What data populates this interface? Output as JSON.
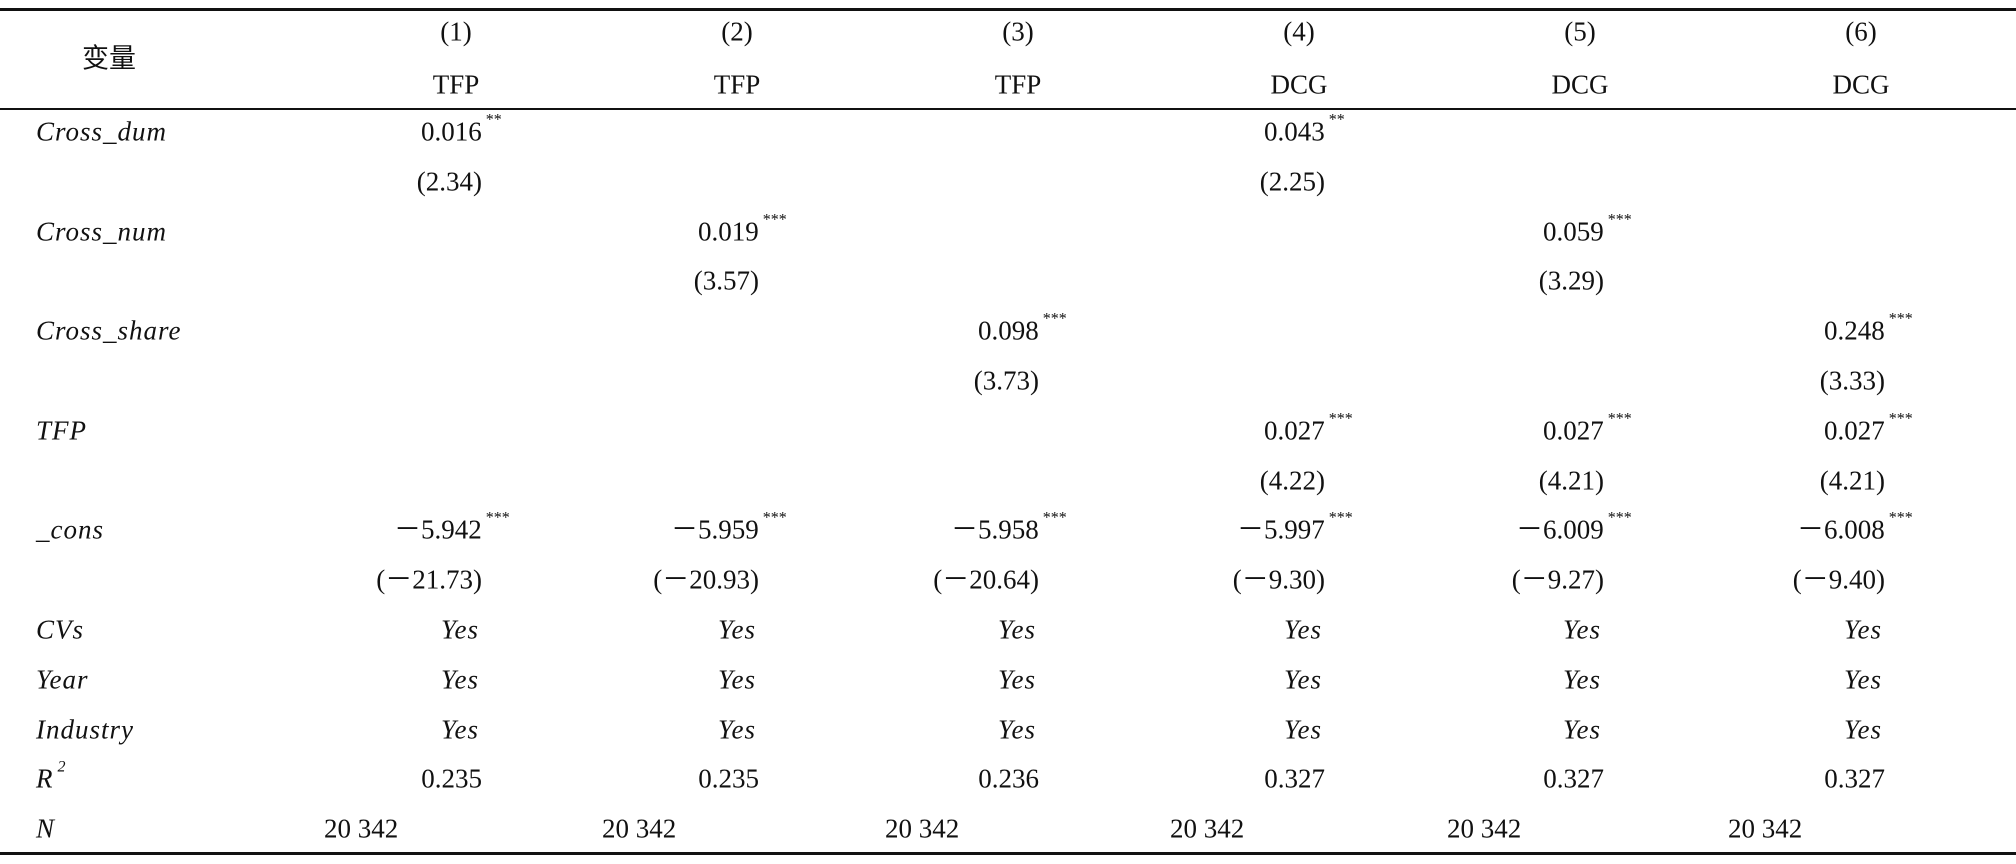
{
  "header": {
    "label": "变量",
    "columns": [
      {
        "number": "(1)",
        "dep": "TFP"
      },
      {
        "number": "(2)",
        "dep": "TFP"
      },
      {
        "number": "(3)",
        "dep": "TFP"
      },
      {
        "number": "(4)",
        "dep": "DCG"
      },
      {
        "number": "(5)",
        "dep": "DCG"
      },
      {
        "number": "(6)",
        "dep": "DCG"
      }
    ]
  },
  "rows": [
    {
      "label": "Cross_dum",
      "cells": [
        {
          "value": "0.016",
          "stars": "**"
        },
        null,
        null,
        {
          "value": "0.043",
          "stars": "**"
        },
        null,
        null
      ]
    },
    {
      "label": null,
      "cells": [
        "(2.34)",
        null,
        null,
        "(2.25)",
        null,
        null
      ]
    },
    {
      "label": "Cross_num",
      "cells": [
        null,
        {
          "value": "0.019",
          "stars": "***"
        },
        null,
        null,
        {
          "value": "0.059",
          "stars": "***"
        },
        null
      ]
    },
    {
      "label": null,
      "cells": [
        null,
        "(3.57)",
        null,
        null,
        "(3.29)",
        null
      ]
    },
    {
      "label": "Cross_share",
      "cells": [
        null,
        null,
        {
          "value": "0.098",
          "stars": "***"
        },
        null,
        null,
        {
          "value": "0.248",
          "stars": "***"
        }
      ]
    },
    {
      "label": null,
      "cells": [
        null,
        null,
        "(3.73)",
        null,
        null,
        "(3.33)"
      ]
    },
    {
      "label": "TFP",
      "cells": [
        null,
        null,
        null,
        {
          "value": "0.027",
          "stars": "***"
        },
        {
          "value": "0.027",
          "stars": "***"
        },
        {
          "value": "0.027",
          "stars": "***"
        }
      ]
    },
    {
      "label": null,
      "cells": [
        null,
        null,
        null,
        "(4.22)",
        "(4.21)",
        "(4.21)"
      ]
    },
    {
      "label": "_cons",
      "cells": [
        {
          "value": "－5.942",
          "stars": "***"
        },
        {
          "value": "－5.959",
          "stars": "***"
        },
        {
          "value": "－5.958",
          "stars": "***"
        },
        {
          "value": "－5.997",
          "stars": "***"
        },
        {
          "value": "－6.009",
          "stars": "***"
        },
        {
          "value": "－6.008",
          "stars": "***"
        }
      ]
    },
    {
      "label": null,
      "cells": [
        "(－21.73)",
        "(－20.93)",
        "(－20.64)",
        "(－9.30)",
        "(－9.27)",
        "(－9.40)"
      ]
    },
    {
      "label": "CVs",
      "cells": [
        "Yes",
        "Yes",
        "Yes",
        "Yes",
        "Yes",
        "Yes"
      ]
    },
    {
      "label": "Year",
      "cells": [
        "Yes",
        "Yes",
        "Yes",
        "Yes",
        "Yes",
        "Yes"
      ]
    },
    {
      "label": "Industry",
      "cells": [
        "Yes",
        "Yes",
        "Yes",
        "Yes",
        "Yes",
        "Yes"
      ]
    },
    {
      "label": "R",
      "label_sup": "2",
      "cells": [
        "0.235",
        "0.235",
        "0.236",
        "0.327",
        "0.327",
        "0.327"
      ]
    },
    {
      "label": "N",
      "cells": [
        "20 342",
        "20 342",
        "20 342",
        "20 342",
        "20 342",
        "20 342"
      ]
    }
  ]
}
